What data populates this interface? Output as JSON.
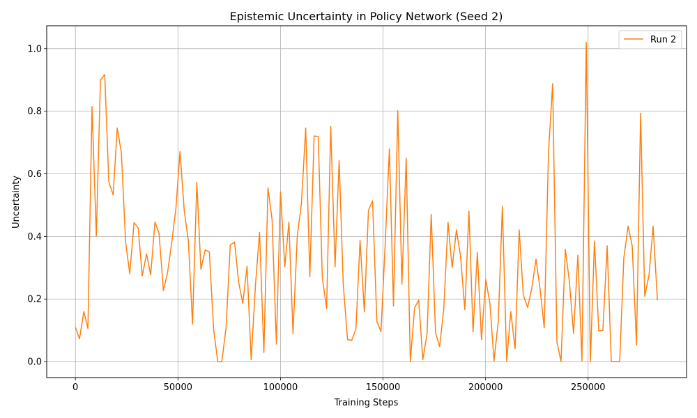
{
  "chart_data": {
    "type": "line",
    "title": "Epistemic Uncertainty in Policy Network (Seed 2)",
    "xlabel": "Training Steps",
    "ylabel": "Uncertainty",
    "xlim": [
      -14000,
      298000
    ],
    "ylim": [
      -0.051,
      1.073
    ],
    "xticks": [
      0,
      50000,
      100000,
      150000,
      200000,
      250000
    ],
    "xtick_labels": [
      "0",
      "50000",
      "100000",
      "150000",
      "200000",
      "250000"
    ],
    "yticks": [
      0.0,
      0.2,
      0.4,
      0.6,
      0.8,
      1.0
    ],
    "ytick_labels": [
      "0.0",
      "0.2",
      "0.4",
      "0.6",
      "0.8",
      "1.0"
    ],
    "grid": true,
    "legend_position": "top-right",
    "colors": {
      "series": "#ff7f0e",
      "grid": "#b0b0b0",
      "axis": "#000000"
    },
    "series": [
      {
        "name": "Run 2",
        "x": [
          0,
          2000,
          4100,
          6100,
          8100,
          10200,
          12200,
          14300,
          16300,
          18400,
          20400,
          22400,
          24500,
          26500,
          28600,
          30600,
          32600,
          34700,
          36700,
          38800,
          40800,
          42900,
          44900,
          46900,
          49000,
          51000,
          53100,
          55100,
          57100,
          59200,
          61200,
          63300,
          65300,
          67400,
          69400,
          71400,
          73500,
          75500,
          77600,
          79600,
          81600,
          83700,
          85700,
          87800,
          89800,
          91900,
          93900,
          95900,
          98000,
          100000,
          102100,
          104100,
          106100,
          108200,
          110200,
          112300,
          114300,
          116400,
          118400,
          120400,
          122500,
          124500,
          126600,
          128600,
          130600,
          132700,
          134700,
          136800,
          138800,
          140900,
          142900,
          144900,
          147000,
          149000,
          151100,
          153100,
          155100,
          157200,
          159200,
          161300,
          163300,
          165400,
          167400,
          169400,
          171500,
          173500,
          175600,
          177600,
          179600,
          181700,
          183700,
          185800,
          187800,
          189900,
          191900,
          193900,
          196000,
          198000,
          200100,
          202100,
          204100,
          206200,
          208200,
          210300,
          212300,
          214400,
          216400,
          218400,
          220500,
          222500,
          224600,
          226600,
          228600,
          230700,
          232700,
          234800,
          236800,
          238900,
          240900,
          242900,
          245000,
          247000,
          249100,
          251100,
          253100,
          255200,
          257200,
          259300,
          261300,
          263400,
          265400,
          267400,
          269500,
          271500,
          273600,
          275600,
          277600,
          279700,
          281700,
          283800
        ],
        "y": [
          0.11,
          0.073,
          0.16,
          0.106,
          0.815,
          0.401,
          0.9,
          0.917,
          0.574,
          0.533,
          0.746,
          0.668,
          0.38,
          0.281,
          0.444,
          0.428,
          0.274,
          0.344,
          0.277,
          0.446,
          0.409,
          0.227,
          0.283,
          0.377,
          0.489,
          0.671,
          0.48,
          0.385,
          0.12,
          0.573,
          0.295,
          0.357,
          0.351,
          0.103,
          0.0,
          0.0,
          0.111,
          0.373,
          0.382,
          0.254,
          0.186,
          0.304,
          0.006,
          0.245,
          0.413,
          0.029,
          0.555,
          0.454,
          0.056,
          0.542,
          0.303,
          0.446,
          0.09,
          0.402,
          0.504,
          0.746,
          0.271,
          0.721,
          0.719,
          0.268,
          0.17,
          0.751,
          0.303,
          0.642,
          0.248,
          0.07,
          0.068,
          0.105,
          0.387,
          0.159,
          0.484,
          0.514,
          0.128,
          0.096,
          0.382,
          0.68,
          0.178,
          0.802,
          0.247,
          0.65,
          0.0,
          0.172,
          0.197,
          0.006,
          0.09,
          0.471,
          0.093,
          0.048,
          0.167,
          0.445,
          0.3,
          0.421,
          0.336,
          0.166,
          0.481,
          0.095,
          0.349,
          0.07,
          0.262,
          0.188,
          0.002,
          0.129,
          0.497,
          0.001,
          0.16,
          0.041,
          0.421,
          0.213,
          0.173,
          0.233,
          0.327,
          0.231,
          0.108,
          0.671,
          0.888,
          0.062,
          0.001,
          0.359,
          0.254,
          0.09,
          0.34,
          0.002,
          1.02,
          0.0,
          0.385,
          0.098,
          0.1,
          0.37,
          0.001,
          0.0,
          0.0,
          0.33,
          0.433,
          0.37,
          0.053,
          0.794,
          0.209,
          0.276,
          0.433,
          0.196
        ]
      }
    ]
  }
}
